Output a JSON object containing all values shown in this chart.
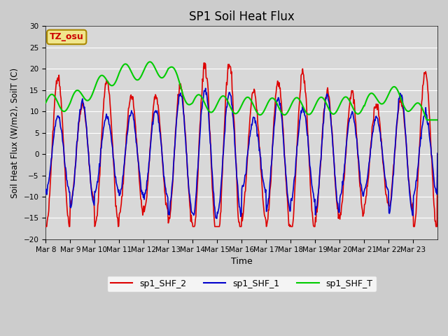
{
  "title": "SP1 Soil Heat Flux",
  "ylabel": "Soil Heat Flux (W/m2), SoilT (C)",
  "xlabel": "Time",
  "ylim": [
    -20,
    30
  ],
  "fig_facecolor": "#cccccc",
  "plot_bg_color": "#d8d8d8",
  "grid_color": "#ffffff",
  "tz_label": "TZ_osu",
  "tz_box_color": "#f0e68c",
  "tz_text_color": "#cc0000",
  "x_tick_labels": [
    "Mar 8",
    "Mar 9",
    "Mar 10",
    "Mar 11",
    "Mar 12",
    "Mar 13",
    "Mar 14",
    "Mar 15",
    "Mar 16",
    "Mar 17",
    "Mar 18",
    "Mar 19",
    "Mar 20",
    "Mar 21",
    "Mar 22",
    "Mar 23"
  ],
  "line_colors": {
    "sp1_SHF_2": "#dd0000",
    "sp1_SHF_1": "#0000cc",
    "sp1_SHF_T": "#00cc00"
  },
  "legend_labels": [
    "sp1_SHF_2",
    "sp1_SHF_1",
    "sp1_SHF_T"
  ],
  "yticks": [
    -20,
    -15,
    -10,
    -5,
    0,
    5,
    10,
    15,
    20,
    25,
    30
  ],
  "n_days": 16,
  "pts_per_day": 48
}
